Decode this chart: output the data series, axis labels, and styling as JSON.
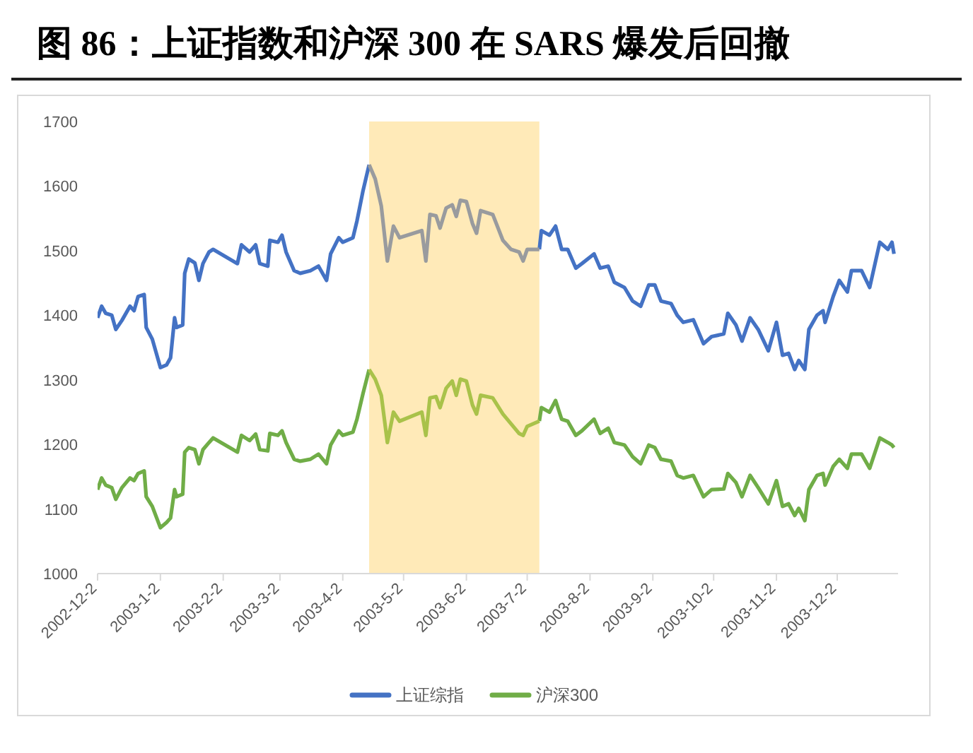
{
  "chart_data": {
    "type": "line",
    "title": "图 86：上证指数和沪深 300 在 SARS 爆发后回撤",
    "x": [
      "2002-12-02",
      "2002-12-04",
      "2002-12-06",
      "2002-12-09",
      "2002-12-11",
      "2002-12-14",
      "2002-12-18",
      "2002-12-20",
      "2002-12-22",
      "2002-12-25",
      "2002-12-26",
      "2002-12-29",
      "2003-01-02",
      "2003-01-05",
      "2003-01-07",
      "2003-01-09",
      "2003-01-10",
      "2003-01-13",
      "2003-01-14",
      "2003-01-16",
      "2003-01-19",
      "2003-01-21",
      "2003-01-23",
      "2003-01-26",
      "2003-01-28",
      "2003-02-09",
      "2003-02-11",
      "2003-02-15",
      "2003-02-18",
      "2003-02-20",
      "2003-02-24",
      "2003-02-25",
      "2003-03-01",
      "2003-03-03",
      "2003-03-05",
      "2003-03-09",
      "2003-03-12",
      "2003-03-17",
      "2003-03-21",
      "2003-03-25",
      "2003-03-27",
      "2003-03-31",
      "2003-04-02",
      "2003-04-07",
      "2003-04-09",
      "2003-04-12",
      "2003-04-15",
      "2003-04-18",
      "2003-04-21",
      "2003-04-24",
      "2003-04-27",
      "2003-04-30",
      "2003-05-11",
      "2003-05-13",
      "2003-05-15",
      "2003-05-18",
      "2003-05-20",
      "2003-05-23",
      "2003-05-26",
      "2003-05-28",
      "2003-05-30",
      "2003-06-02",
      "2003-06-05",
      "2003-06-07",
      "2003-06-09",
      "2003-06-15",
      "2003-06-20",
      "2003-06-24",
      "2003-06-28",
      "2003-06-30",
      "2003-07-02",
      "2003-07-08",
      "2003-07-09",
      "2003-07-13",
      "2003-07-16",
      "2003-07-19",
      "2003-07-22",
      "2003-07-26",
      "2003-07-29",
      "2003-08-04",
      "2003-08-07",
      "2003-08-11",
      "2003-08-14",
      "2003-08-19",
      "2003-08-23",
      "2003-08-27",
      "2003-08-31",
      "2003-09-03",
      "2003-09-06",
      "2003-09-11",
      "2003-09-14",
      "2003-09-17",
      "2003-09-22",
      "2003-09-27",
      "2003-10-01",
      "2003-10-07",
      "2003-10-09",
      "2003-10-13",
      "2003-10-16",
      "2003-10-20",
      "2003-10-24",
      "2003-10-29",
      "2003-11-02",
      "2003-11-05",
      "2003-11-08",
      "2003-11-11",
      "2003-11-13",
      "2003-11-16",
      "2003-11-18",
      "2003-11-22",
      "2003-11-25",
      "2003-11-26",
      "2003-11-30",
      "2003-12-03",
      "2003-12-07",
      "2003-12-09",
      "2003-12-14",
      "2003-12-18",
      "2003-12-23",
      "2003-12-27",
      "2003-12-29",
      "2003-12-30"
    ],
    "series": [
      {
        "name": "上证综指",
        "color": "#4472c4",
        "values": [
          1396,
          1414,
          1403,
          1400,
          1378,
          1392,
          1414,
          1407,
          1429,
          1432,
          1381,
          1363,
          1319,
          1323,
          1334,
          1396,
          1381,
          1385,
          1465,
          1487,
          1481,
          1454,
          1480,
          1498,
          1502,
          1480,
          1509,
          1498,
          1509,
          1480,
          1476,
          1516,
          1513,
          1524,
          1498,
          1469,
          1465,
          1469,
          1476,
          1454,
          1495,
          1520,
          1513,
          1520,
          1546,
          1593,
          1633,
          null,
          null,
          null,
          null,
          null,
          null,
          null,
          null,
          null,
          null,
          null,
          null,
          null,
          null,
          null,
          null,
          null,
          null,
          null,
          null,
          null,
          null,
          null,
          null,
          1502,
          1531,
          1524,
          1538,
          1502,
          1502,
          1473,
          1480,
          1495,
          1473,
          1476,
          1451,
          1443,
          1422,
          1414,
          1447,
          1447,
          1422,
          1418,
          1400,
          1389,
          1393,
          1356,
          1367,
          1371,
          1403,
          1385,
          1360,
          1396,
          1378,
          1345,
          1389,
          1338,
          1341,
          1316,
          1330,
          1316,
          1378,
          1400,
          1407,
          1389,
          1429,
          1454,
          1436,
          1469,
          1469,
          1443,
          1513,
          1502,
          1513,
          1495
        ]
      },
      {
        "color": "#999b9e",
        "values": [
          null,
          null,
          null,
          null,
          null,
          null,
          null,
          null,
          null,
          null,
          null,
          null,
          null,
          null,
          null,
          null,
          null,
          null,
          null,
          null,
          null,
          null,
          null,
          null,
          null,
          null,
          null,
          null,
          null,
          null,
          null,
          null,
          null,
          null,
          null,
          null,
          null,
          null,
          null,
          null,
          null,
          null,
          null,
          null,
          null,
          null,
          1633,
          1611,
          1569,
          1484,
          1538,
          1520,
          1531,
          1484,
          1556,
          1554,
          1535,
          1566,
          1571,
          1553,
          1578,
          1576,
          1542,
          1527,
          1562,
          1556,
          1516,
          1502,
          1498,
          1484,
          1502,
          1502,
          null,
          null,
          null,
          null,
          null,
          null,
          null,
          null,
          null,
          null,
          null,
          null,
          null,
          null,
          null,
          null,
          null,
          null,
          null,
          null,
          null,
          null,
          null,
          null,
          null,
          null,
          null,
          null,
          null,
          null,
          null,
          null,
          null,
          null,
          null,
          null,
          null,
          null,
          null,
          null,
          null,
          null,
          null,
          null,
          null,
          null,
          null,
          null,
          null,
          null
        ]
      },
      {
        "name": "沪深300",
        "color": "#70ad47",
        "values": [
          1130,
          1148,
          1137,
          1133,
          1115,
          1133,
          1148,
          1144,
          1155,
          1159,
          1119,
          1104,
          1071,
          1079,
          1086,
          1130,
          1119,
          1123,
          1188,
          1195,
          1192,
          1170,
          1192,
          1203,
          1210,
          1188,
          1214,
          1206,
          1216,
          1192,
          1190,
          1217,
          1214,
          1221,
          1203,
          1177,
          1174,
          1177,
          1185,
          1170,
          1199,
          1221,
          1214,
          1219,
          1239,
          1279,
          1316,
          null,
          null,
          null,
          null,
          null,
          null,
          null,
          null,
          null,
          null,
          null,
          null,
          null,
          null,
          null,
          null,
          null,
          null,
          null,
          null,
          null,
          null,
          null,
          null,
          1236,
          1257,
          1250,
          1268,
          1239,
          1236,
          1214,
          1221,
          1239,
          1217,
          1225,
          1203,
          1199,
          1181,
          1170,
          1199,
          1195,
          1177,
          1174,
          1152,
          1148,
          1152,
          1119,
          1130,
          1131,
          1155,
          1141,
          1119,
          1152,
          1133,
          1108,
          1144,
          1104,
          1108,
          1090,
          1101,
          1082,
          1130,
          1152,
          1155,
          1137,
          1166,
          1177,
          1163,
          1185,
          1185,
          1163,
          1210,
          1203,
          1199,
          1195
        ]
      },
      {
        "color": "#a9c24a",
        "values": [
          null,
          null,
          null,
          null,
          null,
          null,
          null,
          null,
          null,
          null,
          null,
          null,
          null,
          null,
          null,
          null,
          null,
          null,
          null,
          null,
          null,
          null,
          null,
          null,
          null,
          null,
          null,
          null,
          null,
          null,
          null,
          null,
          null,
          null,
          null,
          null,
          null,
          null,
          null,
          null,
          null,
          null,
          null,
          null,
          null,
          null,
          1316,
          1301,
          1276,
          1203,
          1250,
          1236,
          1250,
          1214,
          1272,
          1274,
          1257,
          1287,
          1298,
          1276,
          1301,
          1298,
          1261,
          1247,
          1276,
          1272,
          1247,
          1232,
          1217,
          1214,
          1228,
          1236,
          null,
          null,
          null,
          null,
          null,
          null,
          null,
          null,
          null,
          null,
          null,
          null,
          null,
          null,
          null,
          null,
          null,
          null,
          null,
          null,
          null,
          null,
          null,
          null,
          null,
          null,
          null,
          null,
          null,
          null,
          null,
          null,
          null,
          null,
          null,
          null,
          null,
          null,
          null,
          null,
          null,
          null,
          null,
          null,
          null,
          null,
          null,
          null,
          null,
          null
        ]
      }
    ],
    "xlim": [
      "2002-12-02",
      "2004-01-01"
    ],
    "xticks": [
      {
        "value": "2002-12-02",
        "label": "2002-12-2"
      },
      {
        "value": "2003-01-02",
        "label": "2003-1-2"
      },
      {
        "value": "2003-02-02",
        "label": "2003-2-2"
      },
      {
        "value": "2003-03-02",
        "label": "2003-3-2"
      },
      {
        "value": "2003-04-02",
        "label": "2003-4-2"
      },
      {
        "value": "2003-05-02",
        "label": "2003-5-2"
      },
      {
        "value": "2003-06-02",
        "label": "2003-6-2"
      },
      {
        "value": "2003-07-02",
        "label": "2003-7-2"
      },
      {
        "value": "2003-08-02",
        "label": "2003-8-2"
      },
      {
        "value": "2003-09-02",
        "label": "2003-9-2"
      },
      {
        "value": "2003-10-02",
        "label": "2003-10-2"
      },
      {
        "value": "2003-11-02",
        "label": "2003-11-2"
      },
      {
        "value": "2003-12-02",
        "label": "2003-12-2"
      }
    ],
    "ylim": [
      1000,
      1700
    ],
    "yticks": [
      1000,
      1100,
      1200,
      1300,
      1400,
      1500,
      1600,
      1700
    ],
    "bands": [
      {
        "axis": "x",
        "from": "2003-04-15",
        "to": "2003-07-08",
        "color": "#ffeab8"
      }
    ],
    "legend": "bottom"
  }
}
